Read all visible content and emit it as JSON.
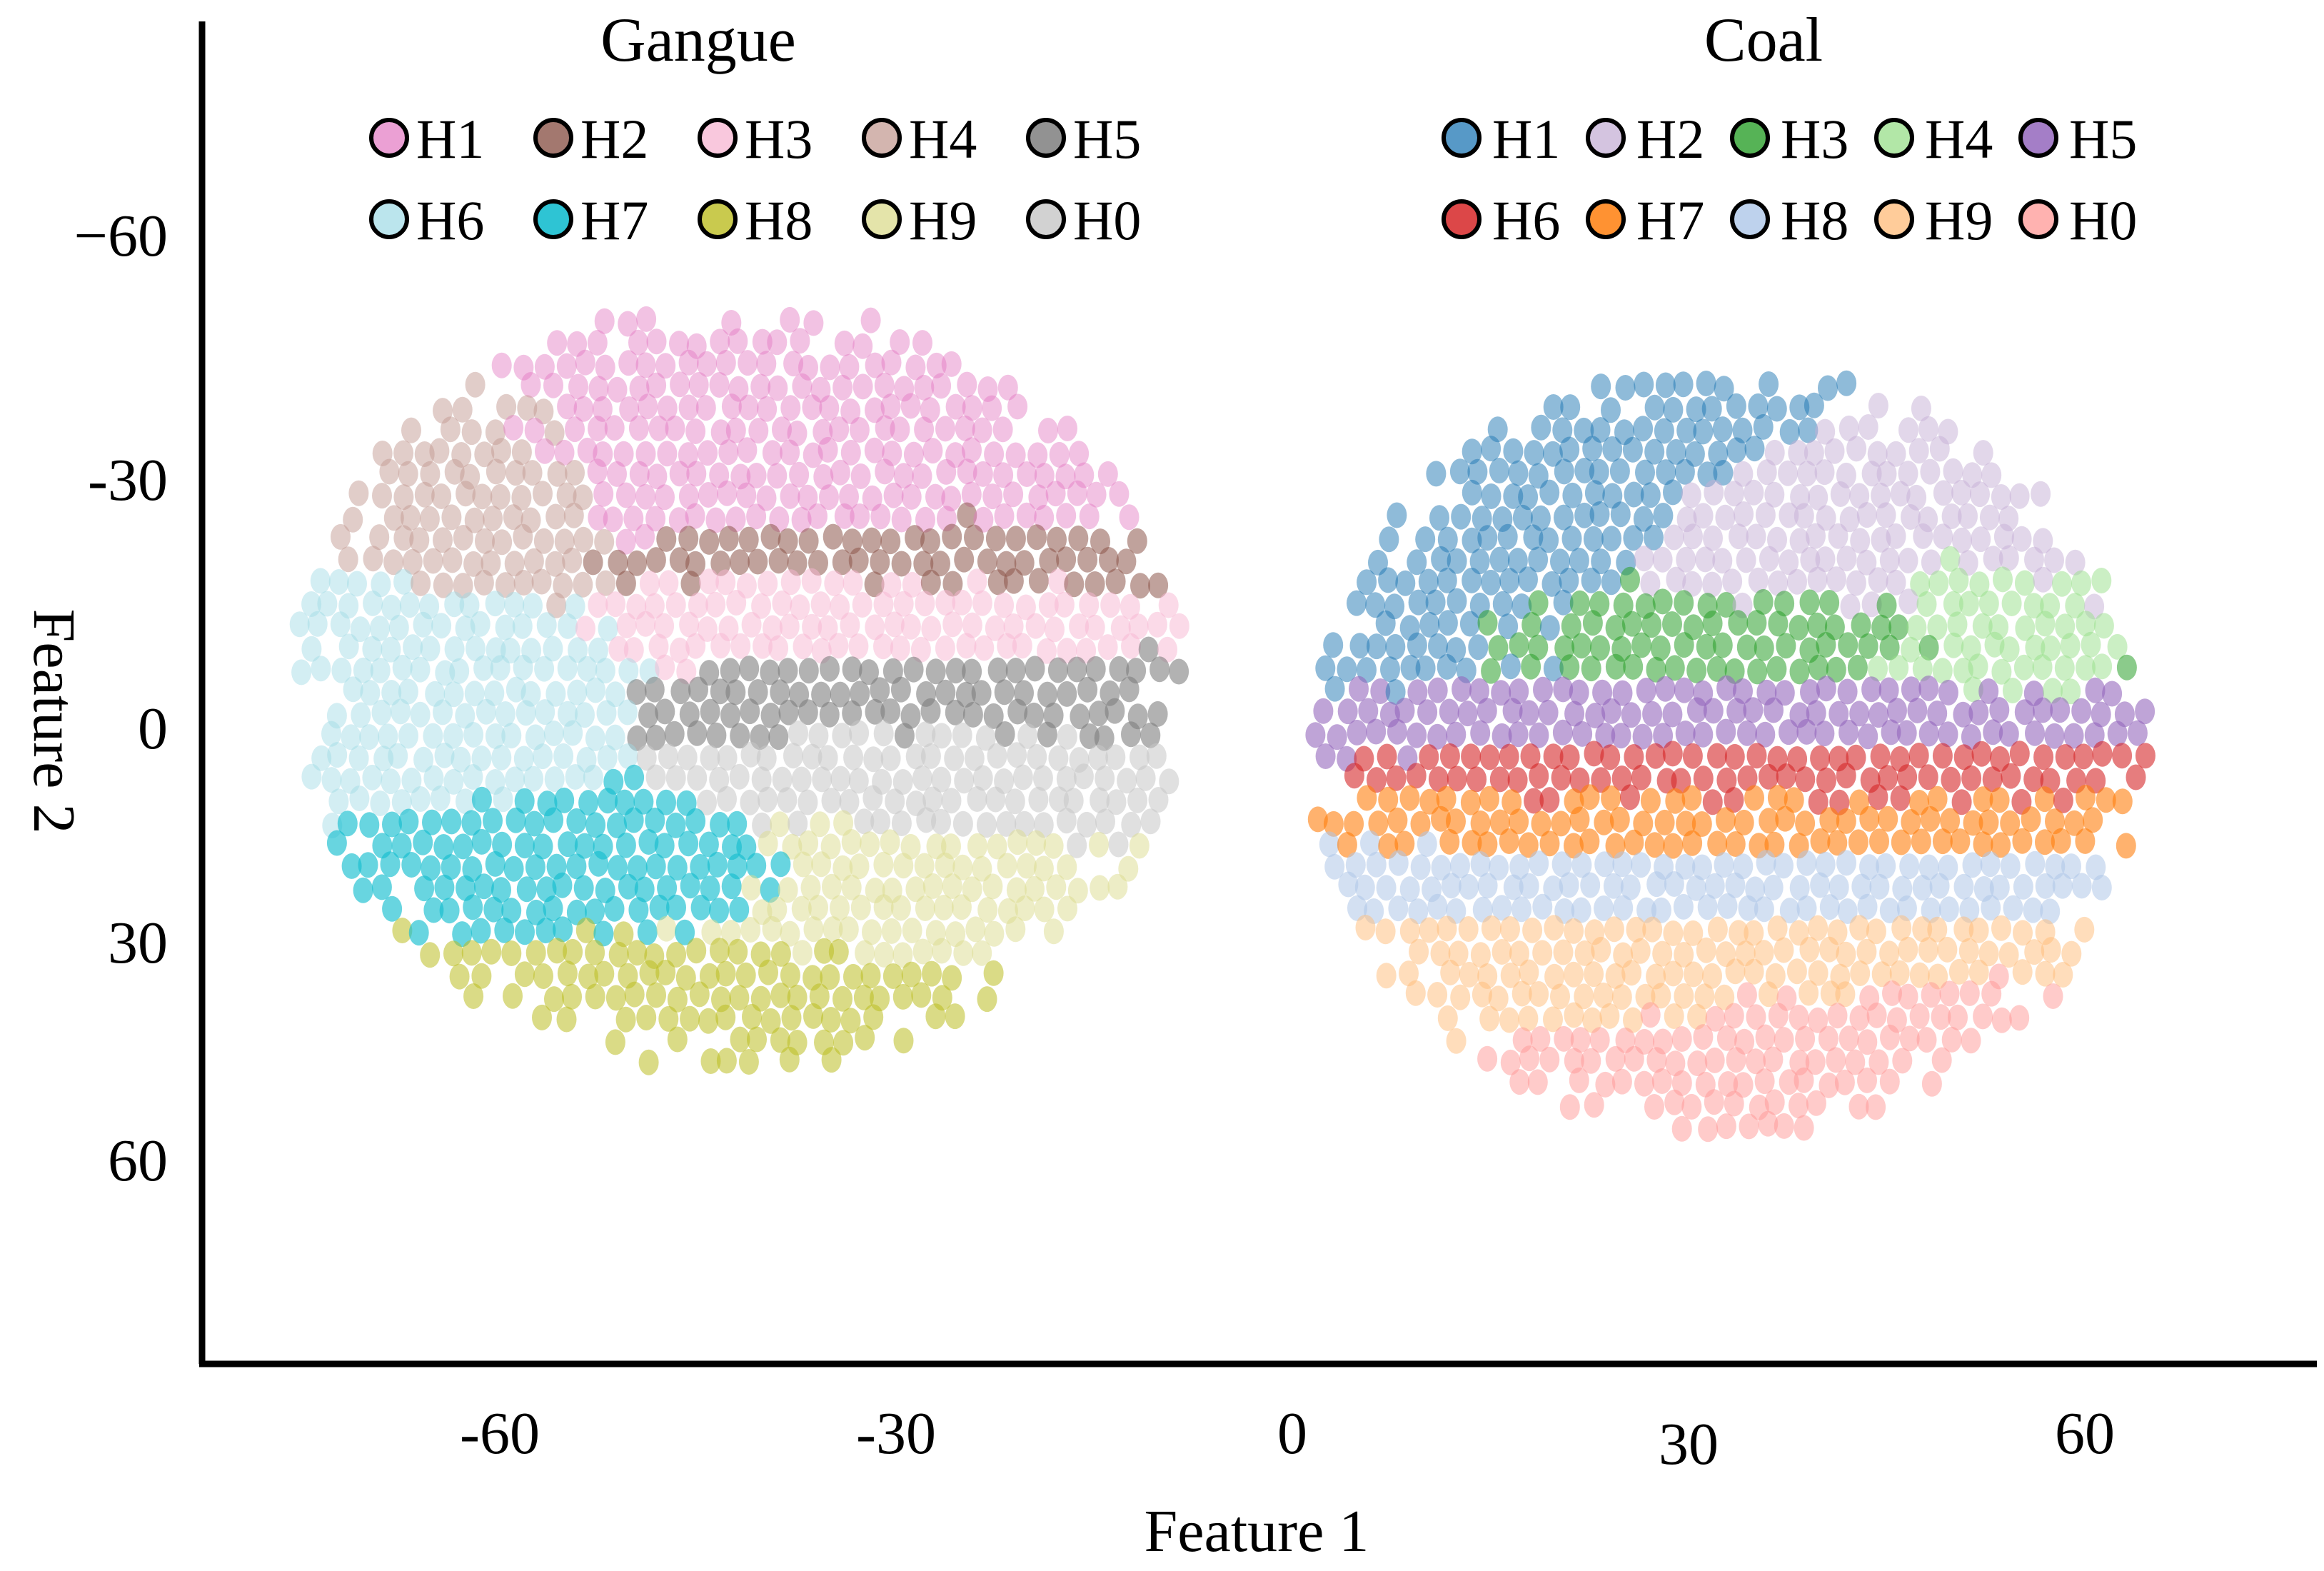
{
  "chart_data": {
    "type": "scatter",
    "xlabel": "Feature 1",
    "ylabel": "Feature 2",
    "xlim": [
      -80,
      80
    ],
    "ylim": [
      -90,
      90
    ],
    "y_inverted": true,
    "grid": false,
    "x_ticks": [
      {
        "value": -60,
        "label": "-60"
      },
      {
        "value": -30,
        "label": "-30"
      },
      {
        "value": 0,
        "label": "0"
      },
      {
        "value": 30,
        "label": "30"
      },
      {
        "value": 60,
        "label": "60"
      }
    ],
    "y_ticks": [
      {
        "value": -60,
        "label": "−60"
      },
      {
        "value": -30,
        "label": "-30"
      },
      {
        "value": 0,
        "label": "0"
      },
      {
        "value": 30,
        "label": "30"
      },
      {
        "value": 60,
        "label": "60"
      }
    ],
    "groups": [
      {
        "name": "Gangue",
        "title": "Gangue",
        "legend_placement": "top-left",
        "cloud_center": [
          -42,
          -6
        ],
        "cloud_radius": [
          34,
          54
        ],
        "series": [
          {
            "name": "H1",
            "color": "#e377c2",
            "opacity": 0.45,
            "region": [
              -38,
              -34,
              22,
              12
            ]
          },
          {
            "name": "H2",
            "color": "#8c564b",
            "opacity": 0.55,
            "region": [
              -32,
              -24,
              22,
              6
            ]
          },
          {
            "name": "H3",
            "color": "#f7b6d2",
            "opacity": 0.5,
            "region": [
              -34,
              -16,
              18,
              8
            ]
          },
          {
            "name": "H4",
            "color": "#c49c94",
            "opacity": 0.5,
            "region": [
              -60,
              -30,
              10,
              12
            ]
          },
          {
            "name": "H5",
            "color": "#7f7f7f",
            "opacity": 0.6,
            "region": [
              -28,
              -4,
              20,
              6
            ]
          },
          {
            "name": "H6",
            "color": "#9edae5",
            "opacity": 0.45,
            "region": [
              -64,
              -8,
              12,
              12
            ]
          },
          {
            "name": "H7",
            "color": "#17becf",
            "opacity": 0.65,
            "region": [
              -48,
              20,
              14,
              8
            ]
          },
          {
            "name": "H8",
            "color": "#bcbd22",
            "opacity": 0.55,
            "region": [
              -44,
              40,
              20,
              10
            ]
          },
          {
            "name": "H9",
            "color": "#dbdb8d",
            "opacity": 0.5,
            "region": [
              -32,
              22,
              16,
              10
            ]
          },
          {
            "name": "H0",
            "color": "#c7c7c7",
            "opacity": 0.55,
            "region": [
              -28,
              8,
              14,
              10
            ]
          }
        ]
      },
      {
        "name": "Coal",
        "title": "Coal",
        "legend_placement": "top-right",
        "cloud_center": [
          33,
          3
        ],
        "cloud_radius": [
          32,
          54
        ],
        "series": [
          {
            "name": "H1",
            "color": "#1f77b4",
            "opacity": 0.5,
            "region": [
              14,
              -28,
              14,
              18
            ]
          },
          {
            "name": "H2",
            "color": "#c5b0d5",
            "opacity": 0.5,
            "region": [
              40,
              -22,
              18,
              10
            ]
          },
          {
            "name": "H3",
            "color": "#2ca02c",
            "opacity": 0.55,
            "region": [
              34,
              -14,
              20,
              8
            ]
          },
          {
            "name": "H4",
            "color": "#98df8a",
            "opacity": 0.5,
            "region": [
              50,
              -16,
              10,
              10
            ]
          },
          {
            "name": "H5",
            "color": "#9467bd",
            "opacity": 0.6,
            "region": [
              32,
              -2,
              24,
              5
            ]
          },
          {
            "name": "H6",
            "color": "#d62728",
            "opacity": 0.6,
            "region": [
              34,
              6,
              18,
              6
            ]
          },
          {
            "name": "H7",
            "color": "#ff7f0e",
            "opacity": 0.6,
            "region": [
              34,
              14,
              20,
              6
            ]
          },
          {
            "name": "H8",
            "color": "#aec7e8",
            "opacity": 0.55,
            "region": [
              32,
              22,
              26,
              6
            ]
          },
          {
            "name": "H9",
            "color": "#ffbb78",
            "opacity": 0.5,
            "region": [
              30,
              34,
              24,
              8
            ]
          },
          {
            "name": "H0",
            "color": "#ff9896",
            "opacity": 0.5,
            "region": [
              44,
              44,
              22,
              10
            ]
          }
        ]
      }
    ]
  }
}
